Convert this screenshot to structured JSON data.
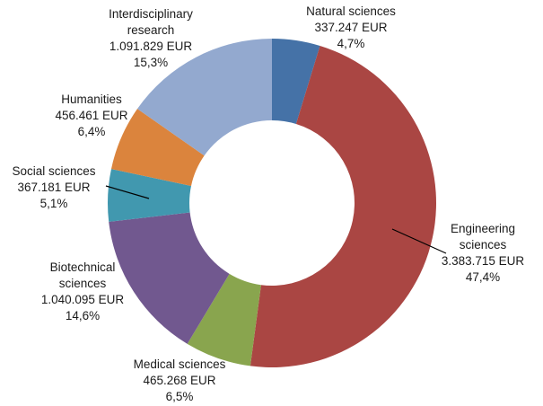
{
  "chart_data": {
    "type": "pie",
    "donut": true,
    "title": "",
    "categories": [
      "Natural sciences",
      "Engineering sciences",
      "Medical sciences",
      "Biotechnical sciences",
      "Social sciences",
      "Humanities",
      "Interdisciplinary research"
    ],
    "values": [
      337247,
      3383715,
      465268,
      1040095,
      367181,
      456461,
      1091829
    ],
    "colors": [
      "#4572A7",
      "#AA4643",
      "#89A54E",
      "#71588F",
      "#4198AF",
      "#DB843D",
      "#93A9CF"
    ],
    "labels": [
      {
        "lines": [
          "Natural sciences",
          "337.247 EUR",
          "4,7%"
        ]
      },
      {
        "lines": [
          "Engineering",
          "sciences",
          "3.383.715 EUR",
          "47,4%"
        ]
      },
      {
        "lines": [
          "Medical sciences",
          "465.268 EUR",
          "6,5%"
        ]
      },
      {
        "lines": [
          "Biotechnical",
          "sciences",
          "1.040.095 EUR",
          "14,6%"
        ]
      },
      {
        "lines": [
          "Social sciences",
          "367.181 EUR",
          "5,1%"
        ]
      },
      {
        "lines": [
          "Humanities",
          "456.461 EUR",
          "6,4%"
        ]
      },
      {
        "lines": [
          "Interdisciplinary",
          "research",
          "1.091.829 EUR",
          "15,3%"
        ]
      }
    ]
  }
}
